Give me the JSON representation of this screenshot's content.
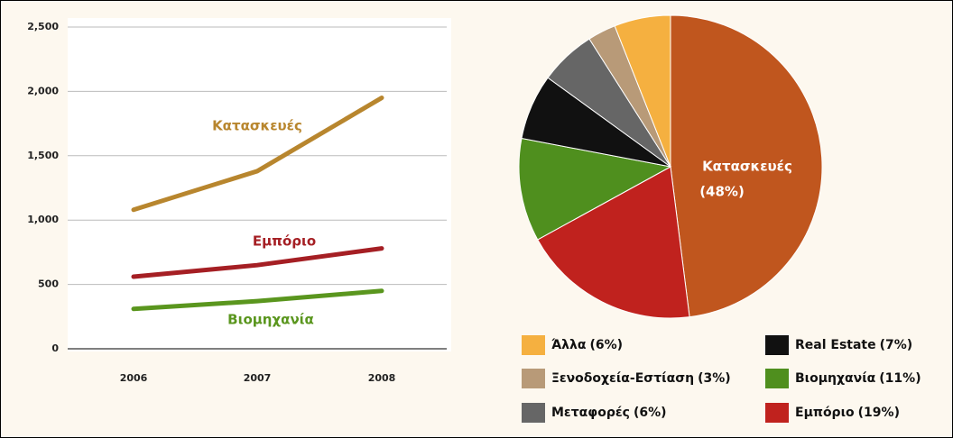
{
  "chart_data": [
    {
      "type": "line",
      "categories": [
        "2006",
        "2007",
        "2008"
      ],
      "series": [
        {
          "name": "Κατασκευές",
          "color": "#b8862e",
          "values": [
            1080,
            1380,
            1950
          ]
        },
        {
          "name": "Εμπόριο",
          "color": "#a51f24",
          "values": [
            560,
            650,
            780
          ]
        },
        {
          "name": "Βιομηχανία",
          "color": "#5a961e",
          "values": [
            310,
            370,
            450
          ]
        }
      ],
      "ylim": [
        0,
        2500
      ],
      "yticks": [
        0,
        500,
        {
          "value": 1000,
          "label": "1,000"
        },
        {
          "value": 1500,
          "label": "1,500"
        },
        {
          "value": 2000,
          "label": "2,000"
        },
        {
          "value": 2500,
          "label": "2,500"
        }
      ],
      "grid": true
    },
    {
      "type": "pie",
      "categories": [
        "Κατασκευές",
        "Εμπόριο",
        "Βιομηχανία",
        "Real Estate",
        "Μεταφορές",
        "Ξενοδοχεία-Εστίαση",
        "Άλλα"
      ],
      "values": [
        48,
        19,
        11,
        7,
        6,
        3,
        6
      ],
      "value_labels": [
        "(48%)",
        "(19%)",
        "(11%)",
        "(7%)",
        "(6%)",
        "(3%)",
        "(6%)"
      ],
      "colors": [
        "#c0561e",
        "#c0221e",
        "#4f8f1e",
        "#111111",
        "#666666",
        "#b89a78",
        "#f5b040"
      ],
      "legend": "bottom"
    }
  ]
}
